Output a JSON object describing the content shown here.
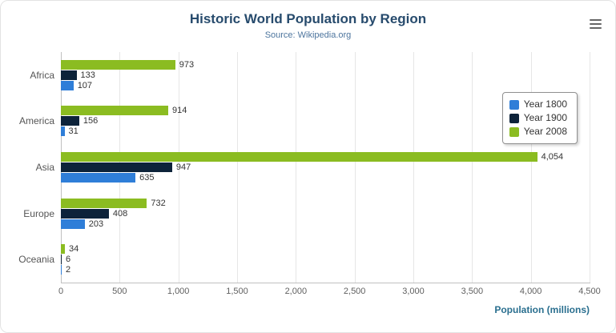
{
  "icons": {
    "export_menu": "hamburger-icon"
  },
  "chart_data": {
    "type": "bar",
    "orientation": "horizontal",
    "title": "Historic World Population by Region",
    "subtitle": "Source: Wikipedia.org",
    "xlabel": "Population (millions)",
    "xlim": [
      0,
      4500
    ],
    "grid": "vertical",
    "legend_position": "right",
    "categories": [
      "Africa",
      "America",
      "Asia",
      "Europe",
      "Oceania"
    ],
    "series": [
      {
        "name": "Year 1800",
        "color": "#2f7ed8",
        "values": [
          107,
          31,
          635,
          203,
          2
        ]
      },
      {
        "name": "Year 1900",
        "color": "#0d233a",
        "values": [
          133,
          156,
          947,
          408,
          6
        ]
      },
      {
        "name": "Year 2008",
        "color": "#8bbc21",
        "values": [
          973,
          914,
          4054,
          732,
          34
        ]
      }
    ],
    "xticks": [
      {
        "value": 0,
        "label": "0"
      },
      {
        "value": 500,
        "label": "500"
      },
      {
        "value": 1000,
        "label": "1,000"
      },
      {
        "value": 1500,
        "label": "1,500"
      },
      {
        "value": 2000,
        "label": "2,000"
      },
      {
        "value": 2500,
        "label": "2,500"
      },
      {
        "value": 3000,
        "label": "3,000"
      },
      {
        "value": 3500,
        "label": "3,500"
      },
      {
        "value": 4000,
        "label": "4,000"
      },
      {
        "value": 4500,
        "label": "4,500"
      }
    ]
  }
}
